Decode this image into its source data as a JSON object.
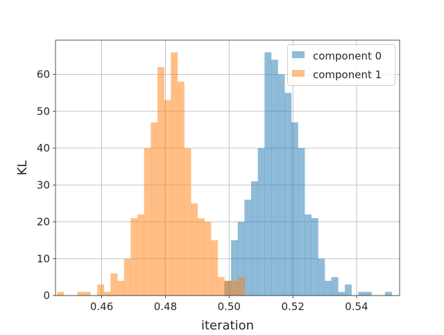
{
  "chart_data": {
    "type": "bar",
    "title": "",
    "xlabel": "iteration",
    "ylabel": "KL",
    "xlim": [
      0.4455,
      0.5535
    ],
    "ylim": [
      0,
      69.3
    ],
    "xticks": [
      0.46,
      0.48,
      0.5,
      0.52,
      0.54
    ],
    "xtick_labels": [
      "0.46",
      "0.48",
      "0.50",
      "0.52",
      "0.54"
    ],
    "yticks": [
      0,
      10,
      20,
      30,
      40,
      50,
      60
    ],
    "ytick_labels": [
      "0",
      "10",
      "20",
      "30",
      "40",
      "50",
      "60"
    ],
    "grid": true,
    "legend_position": "top-right",
    "bin_width": 0.0021,
    "series": [
      {
        "name": "component 0",
        "color": "#1f77b4",
        "opacity": 0.5,
        "bin_starts": [
          0.4985,
          0.5006,
          0.5027,
          0.5048,
          0.5069,
          0.509,
          0.5111,
          0.5132,
          0.5153,
          0.5174,
          0.5195,
          0.5216,
          0.5237,
          0.5258,
          0.5279,
          0.53,
          0.5321,
          0.5342,
          0.5363,
          0.5384,
          0.5405,
          0.5426,
          0.5447,
          0.5468,
          0.5489,
          0.551
        ],
        "counts": [
          4,
          15,
          20,
          26,
          31,
          40,
          66,
          64,
          60,
          55,
          47,
          40,
          22,
          21,
          10,
          4,
          5,
          1,
          3,
          0,
          1,
          1,
          0,
          0,
          1,
          0
        ]
      },
      {
        "name": "component 1",
        "color": "#ff7f0e",
        "opacity": 0.5,
        "bin_starts": [
          0.446,
          0.4481,
          0.4502,
          0.4523,
          0.4544,
          0.4565,
          0.4586,
          0.4607,
          0.4628,
          0.4649,
          0.467,
          0.4691,
          0.4712,
          0.4733,
          0.4754,
          0.4775,
          0.4796,
          0.4817,
          0.4838,
          0.4859,
          0.488,
          0.4901,
          0.4922,
          0.4943,
          0.4964,
          0.4985,
          0.5006,
          0.5027
        ],
        "counts": [
          1,
          0,
          0,
          1,
          1,
          0,
          3,
          1,
          6,
          4,
          10,
          21,
          22,
          40,
          47,
          62,
          53,
          66,
          58,
          40,
          25,
          21,
          20,
          15,
          5,
          4,
          4,
          5
        ]
      }
    ]
  }
}
